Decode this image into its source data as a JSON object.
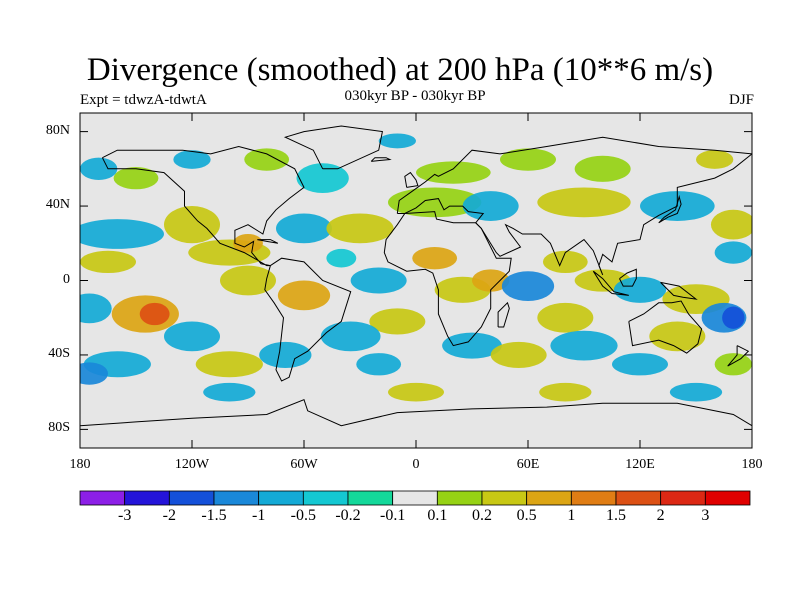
{
  "header": {
    "title": "Divergence (smoothed) at 200 hPa (10**6 m/s)",
    "experiment": "Expt = tdwzA-tdwtA",
    "period": "030kyr BP - 030kyr BP",
    "season": "DJF"
  },
  "axes": {
    "lat_ticks": [
      "80N",
      "40N",
      "0",
      "40S",
      "80S"
    ],
    "lon_ticks": [
      "180",
      "120W",
      "60W",
      "0",
      "60E",
      "120E",
      "180"
    ]
  },
  "colorbar": {
    "labels": [
      "-3",
      "-2",
      "-1.5",
      "-1",
      "-0.5",
      "-0.2",
      "-0.1",
      "0.1",
      "0.2",
      "0.5",
      "1",
      "1.5",
      "2",
      "3"
    ],
    "colors": [
      "#8c1fe6",
      "#2414d9",
      "#1450d9",
      "#1a88d9",
      "#14aad6",
      "#14c8d2",
      "#14d89a",
      "#e6e6e6",
      "#96d214",
      "#c8c814",
      "#dca514",
      "#e07d14",
      "#dc5014",
      "#dc2814",
      "#e00000"
    ]
  }
}
